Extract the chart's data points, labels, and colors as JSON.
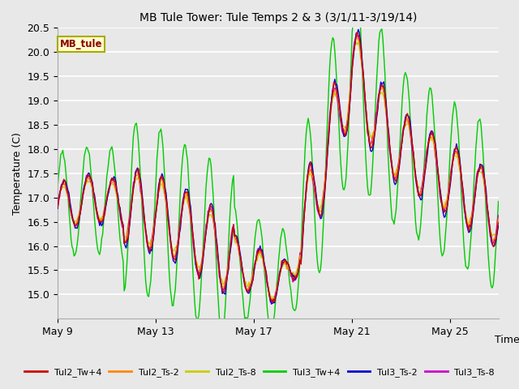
{
  "title": "MB Tule Tower: Tule Temps 2 & 3 (3/1/11-3/19/14)",
  "xlabel": "Time",
  "ylabel": "Temperature (C)",
  "ylim": [
    14.5,
    20.5
  ],
  "yticks": [
    15.0,
    15.5,
    16.0,
    16.5,
    17.0,
    17.5,
    18.0,
    18.5,
    19.0,
    19.5,
    20.0,
    20.5
  ],
  "xtick_labels": [
    "May 9",
    "May 13",
    "May 17",
    "May 21",
    "May 25"
  ],
  "xtick_pos": [
    0,
    96,
    192,
    288,
    384
  ],
  "n_points": 432,
  "bg_color": "#e8e8e8",
  "fig_bg": "#e8e8e8",
  "grid_color": "#ffffff",
  "legend_label": "MB_tule",
  "legend_bg": "#ffffcc",
  "legend_border": "#aaaa00",
  "series_colors": {
    "Tul2_Tw+4": "#cc0000",
    "Tul2_Ts-2": "#ff8800",
    "Tul2_Ts-8": "#cccc00",
    "Tul3_Tw+4": "#00cc00",
    "Tul3_Ts-2": "#0000cc",
    "Tul3_Ts-8": "#cc00cc"
  }
}
